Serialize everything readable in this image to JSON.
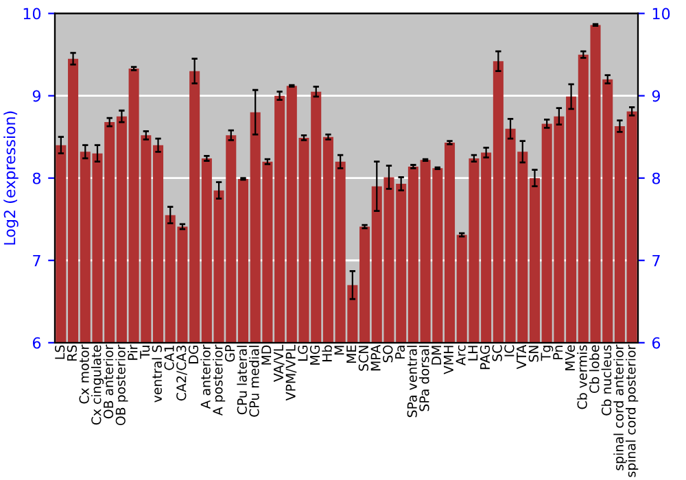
{
  "chart_data": {
    "type": "bar",
    "ylabel": "Log2 (expression)",
    "categories": [
      "LS",
      "RS",
      "Cx motor",
      "Cx cingulate",
      "OB anterior",
      "OB posterior",
      "Pir",
      "Tu",
      "ventral S",
      "CA1",
      "CA2/CA3",
      "DG",
      "A anterior",
      "A posterior",
      "GP",
      "CPu lateral",
      "CPu medial",
      "MD",
      "VA/VL",
      "VPM/VPL",
      "LG",
      "MG",
      "Hb",
      "M",
      "ME",
      "SCN",
      "MPA",
      "SO",
      "Pa",
      "SPa ventral",
      "SPa dorsal",
      "DM",
      "VMH",
      "Arc",
      "LH",
      "PAG",
      "SC",
      "IC",
      "VTA",
      "SN",
      "Tg",
      "Pn",
      "MVe",
      "Cb vermis",
      "Cb lobe",
      "Cb nucleus",
      "spinal cord anterior",
      "spinal cord posterior"
    ],
    "values": [
      8.4,
      9.45,
      8.32,
      8.3,
      8.68,
      8.75,
      9.33,
      8.52,
      8.4,
      7.55,
      7.41,
      9.3,
      8.24,
      7.85,
      8.52,
      7.99,
      8.8,
      8.2,
      9.0,
      9.12,
      8.49,
      9.05,
      8.5,
      8.2,
      6.7,
      7.41,
      7.9,
      8.01,
      7.93,
      8.14,
      8.22,
      8.12,
      8.43,
      7.31,
      8.24,
      8.31,
      9.42,
      8.6,
      8.32,
      8.0,
      8.66,
      8.75,
      8.99,
      9.5,
      9.86,
      9.2,
      8.63,
      8.81
    ],
    "errors": [
      0.1,
      0.07,
      0.08,
      0.1,
      0.05,
      0.07,
      0.02,
      0.05,
      0.08,
      0.1,
      0.03,
      0.15,
      0.03,
      0.1,
      0.06,
      0.01,
      0.27,
      0.03,
      0.05,
      0.01,
      0.03,
      0.06,
      0.03,
      0.08,
      0.17,
      0.02,
      0.3,
      0.14,
      0.08,
      0.02,
      0.01,
      0.01,
      0.02,
      0.02,
      0.04,
      0.06,
      0.12,
      0.12,
      0.13,
      0.1,
      0.05,
      0.1,
      0.15,
      0.04,
      0.01,
      0.05,
      0.07,
      0.05
    ],
    "color": "#b03232",
    "ylim": [
      6,
      10
    ],
    "yticks": [
      6,
      7,
      8,
      9,
      10
    ],
    "y2lim": [
      6,
      10
    ],
    "y2ticks": [
      6,
      7,
      8,
      9,
      10
    ],
    "grid": "y"
  }
}
